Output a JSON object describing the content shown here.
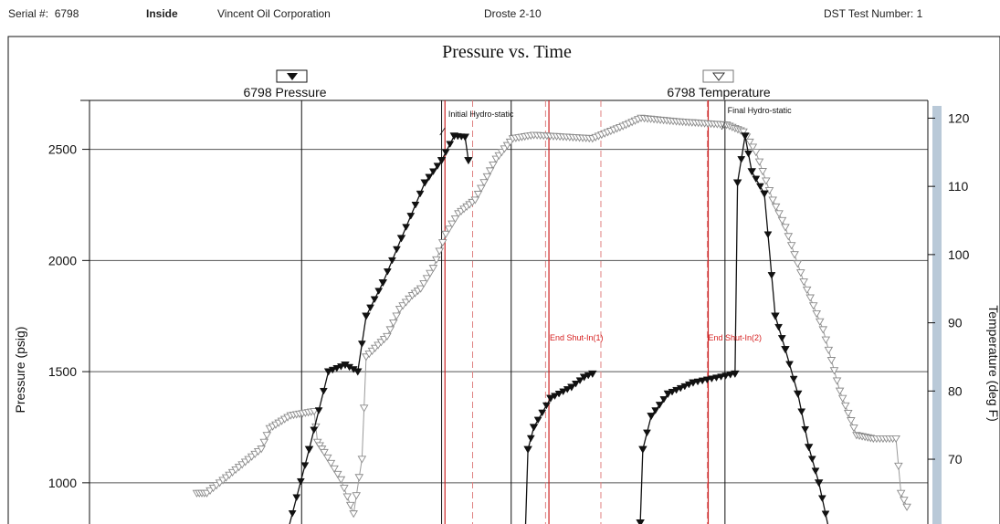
{
  "header": {
    "serial_label": "Serial #:",
    "serial_value": "6798",
    "position": "Inside",
    "company": "Vincent Oil Corporation",
    "well": "Droste 2-10",
    "test_number": "DST Test Number: 1"
  },
  "chart_data": {
    "type": "line",
    "title": "Pressure vs. Time",
    "ylabel": "Pressure (psig)",
    "y2label": "Temperature (deg F)",
    "ylim": [
      790,
      2720
    ],
    "y2lim": [
      59.7,
      122.6
    ],
    "yticks": [
      1000,
      1500,
      2000,
      2500
    ],
    "y2ticks": [
      70,
      80,
      90,
      100,
      110,
      120
    ],
    "legend": [
      {
        "name": "6798 Pressure",
        "marker": "filled-triangle"
      },
      {
        "name": "6798 Temperature",
        "marker": "open-triangle"
      }
    ],
    "annotations": [
      {
        "text": "Initial Hydro-static",
        "color": "#111111"
      },
      {
        "text": "End Shut-In(1)",
        "color": "#d62020"
      },
      {
        "text": "End Shut-In(2)",
        "color": "#d62020"
      },
      {
        "text": "Final Hydro-static",
        "color": "#111111"
      }
    ],
    "series": [
      {
        "name": "6798 Pressure",
        "points": [
          [
            0.237,
            790
          ],
          [
            0.262,
            1150
          ],
          [
            0.285,
            1500
          ],
          [
            0.305,
            1530
          ],
          [
            0.32,
            1500
          ],
          [
            0.33,
            1750
          ],
          [
            0.35,
            1900
          ],
          [
            0.372,
            2100
          ],
          [
            0.4,
            2350
          ],
          [
            0.42,
            2450
          ],
          [
            0.435,
            2560
          ],
          [
            0.448,
            2555
          ],
          [
            0.452,
            2450
          ],
          [
            0.52,
            790
          ],
          [
            0.523,
            1150
          ],
          [
            0.53,
            1250
          ],
          [
            0.55,
            1380
          ],
          [
            0.575,
            1430
          ],
          [
            0.59,
            1475
          ],
          [
            0.6,
            1490
          ],
          [
            0.657,
            820
          ],
          [
            0.66,
            1150
          ],
          [
            0.67,
            1300
          ],
          [
            0.69,
            1400
          ],
          [
            0.72,
            1450
          ],
          [
            0.77,
            1490
          ],
          [
            0.773,
            2350
          ],
          [
            0.782,
            2560
          ],
          [
            0.79,
            2400
          ],
          [
            0.805,
            2300
          ],
          [
            0.818,
            1750
          ],
          [
            0.83,
            1600
          ],
          [
            0.845,
            1400
          ],
          [
            0.858,
            1160
          ],
          [
            0.87,
            1000
          ],
          [
            0.882,
            790
          ]
        ]
      },
      {
        "name": "6798 Temperature",
        "points": [
          [
            0.128,
            65
          ],
          [
            0.14,
            65
          ],
          [
            0.205,
            71.5
          ],
          [
            0.215,
            74.5
          ],
          [
            0.24,
            76.4
          ],
          [
            0.268,
            77
          ],
          [
            0.272,
            72.5
          ],
          [
            0.28,
            71
          ],
          [
            0.3,
            67
          ],
          [
            0.315,
            62
          ],
          [
            0.325,
            70
          ],
          [
            0.33,
            85
          ],
          [
            0.355,
            88
          ],
          [
            0.37,
            92
          ],
          [
            0.385,
            94
          ],
          [
            0.395,
            95
          ],
          [
            0.41,
            98
          ],
          [
            0.425,
            103
          ],
          [
            0.44,
            106
          ],
          [
            0.46,
            108
          ],
          [
            0.485,
            114
          ],
          [
            0.505,
            117
          ],
          [
            0.53,
            117.5
          ],
          [
            0.6,
            117
          ],
          [
            0.64,
            119
          ],
          [
            0.658,
            120
          ],
          [
            0.7,
            119.5
          ],
          [
            0.76,
            119
          ],
          [
            0.78,
            118
          ],
          [
            0.795,
            115
          ],
          [
            0.815,
            108
          ],
          [
            0.83,
            104
          ],
          [
            0.852,
            96
          ],
          [
            0.875,
            89
          ],
          [
            0.895,
            80
          ],
          [
            0.915,
            73.5
          ],
          [
            0.935,
            73
          ],
          [
            0.962,
            73
          ],
          [
            0.968,
            65
          ],
          [
            0.975,
            63
          ]
        ]
      }
    ],
    "grid": true
  }
}
